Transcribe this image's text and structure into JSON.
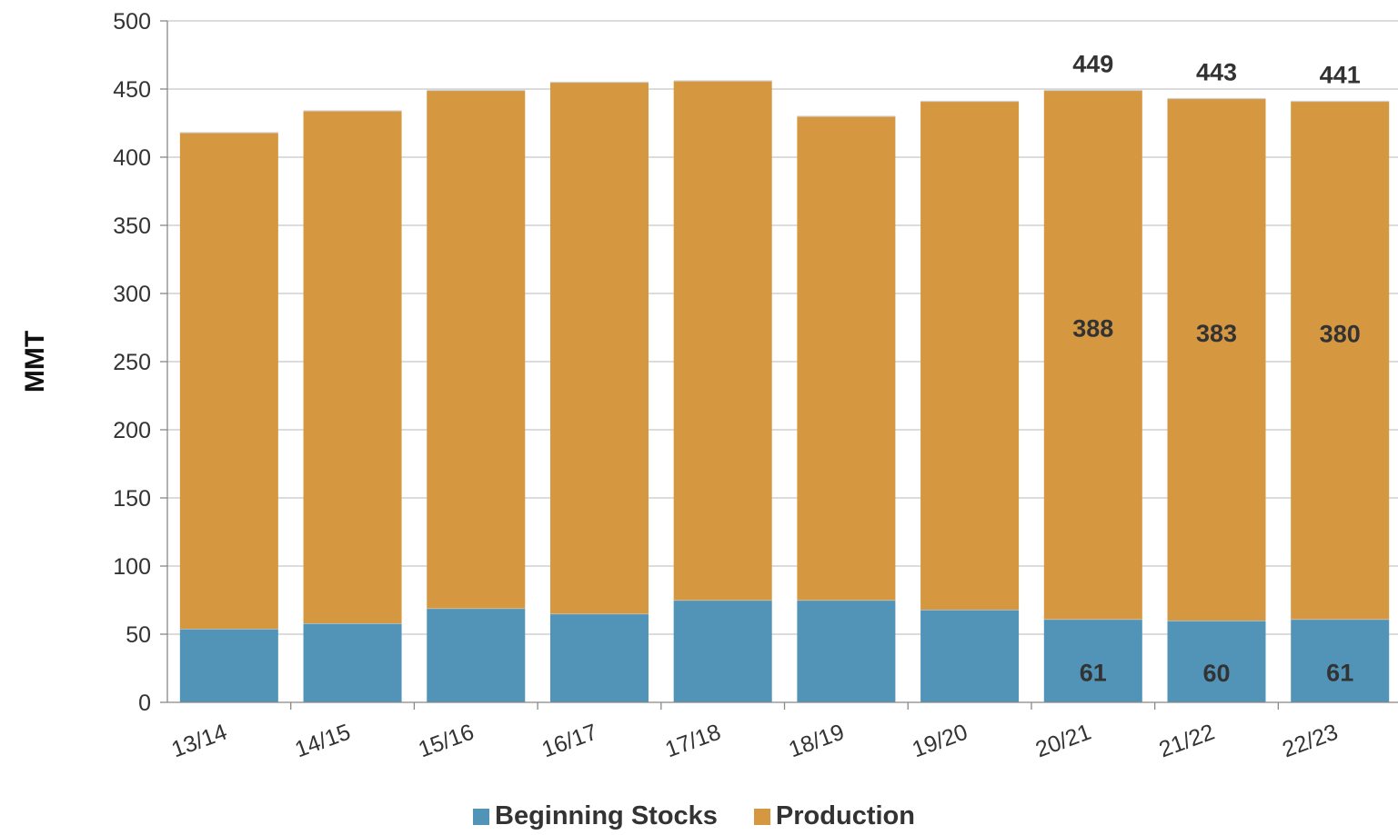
{
  "chart_data": {
    "type": "bar",
    "stacked": true,
    "categories": [
      "13/14",
      "14/15",
      "15/16",
      "16/17",
      "17/18",
      "18/19",
      "19/20",
      "20/21",
      "21/22",
      "22/23"
    ],
    "series": [
      {
        "name": "Beginning Stocks",
        "color": "#5294B8",
        "values": [
          54,
          58,
          69,
          65,
          75,
          75,
          68,
          61,
          60,
          61
        ],
        "data_labels": [
          "",
          "",
          "",
          "",
          "",
          "",
          "",
          "61",
          "60",
          "61"
        ]
      },
      {
        "name": "Production",
        "color": "#D59740",
        "values": [
          364,
          376,
          380,
          390,
          381,
          355,
          373,
          388,
          383,
          380
        ],
        "data_labels": [
          "",
          "",
          "",
          "",
          "",
          "",
          "",
          "388",
          "383",
          "380"
        ]
      }
    ],
    "totals": [
      418,
      434,
      449,
      455,
      456,
      430,
      441,
      449,
      443,
      441
    ],
    "total_labels": [
      "",
      "",
      "",
      "",
      "",
      "",
      "",
      "449",
      "443",
      "441"
    ],
    "ylabel": "MMT",
    "xlabel": "",
    "ylim": [
      0,
      500
    ],
    "yticks": [
      0,
      50,
      100,
      150,
      200,
      250,
      300,
      350,
      400,
      450,
      500
    ],
    "grid": true,
    "legend": "bottom"
  }
}
